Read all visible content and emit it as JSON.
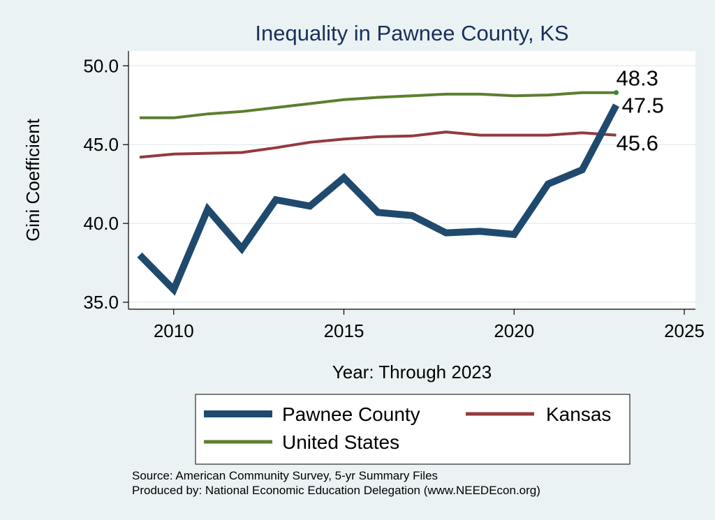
{
  "chart_data": {
    "type": "line",
    "title": "Inequality in Pawnee County, KS",
    "xlabel": "Year: Through 2023",
    "ylabel": "Gini Coefficient",
    "xlim": [
      2009,
      2025
    ],
    "ylim": [
      35,
      50.5
    ],
    "xticks": [
      2010,
      2015,
      2020,
      2025
    ],
    "xtick_labels": [
      "2010",
      "2015",
      "2020",
      "2025"
    ],
    "yticks": [
      35,
      40,
      45,
      50
    ],
    "ytick_labels": [
      "35.0",
      "40.0",
      "45.0",
      "50.0"
    ],
    "grid": "horizontal",
    "legend_position": "bottom",
    "x": [
      2009,
      2010,
      2011,
      2012,
      2013,
      2014,
      2015,
      2016,
      2017,
      2018,
      2019,
      2020,
      2021,
      2022,
      2023
    ],
    "series": [
      {
        "name": "Pawnee County",
        "color": "#1f4a6e",
        "values": [
          38.0,
          35.8,
          40.9,
          38.4,
          41.5,
          41.1,
          42.9,
          40.7,
          40.5,
          39.4,
          39.5,
          39.3,
          42.5,
          43.4,
          47.5
        ],
        "end_label": "47.5"
      },
      {
        "name": "Kansas",
        "color": "#94393f",
        "values": [
          44.2,
          44.4,
          44.45,
          44.5,
          44.8,
          45.15,
          45.35,
          45.5,
          45.55,
          45.8,
          45.6,
          45.6,
          45.6,
          45.75,
          45.6
        ],
        "end_label": "45.6"
      },
      {
        "name": "United States",
        "color": "#5b7f2f",
        "values": [
          46.7,
          46.7,
          46.95,
          47.1,
          47.35,
          47.6,
          47.85,
          48.0,
          48.1,
          48.2,
          48.2,
          48.1,
          48.15,
          48.3,
          48.3
        ],
        "end_label": "48.3"
      }
    ]
  },
  "legend": {
    "items": [
      "Pawnee County",
      "Kansas",
      "United States"
    ]
  },
  "source_lines": [
    "Source: American Community Survey, 5-yr Summary Files",
    "Produced by: National Economic Education Delegation (www.NEEDEcon.org)"
  ]
}
